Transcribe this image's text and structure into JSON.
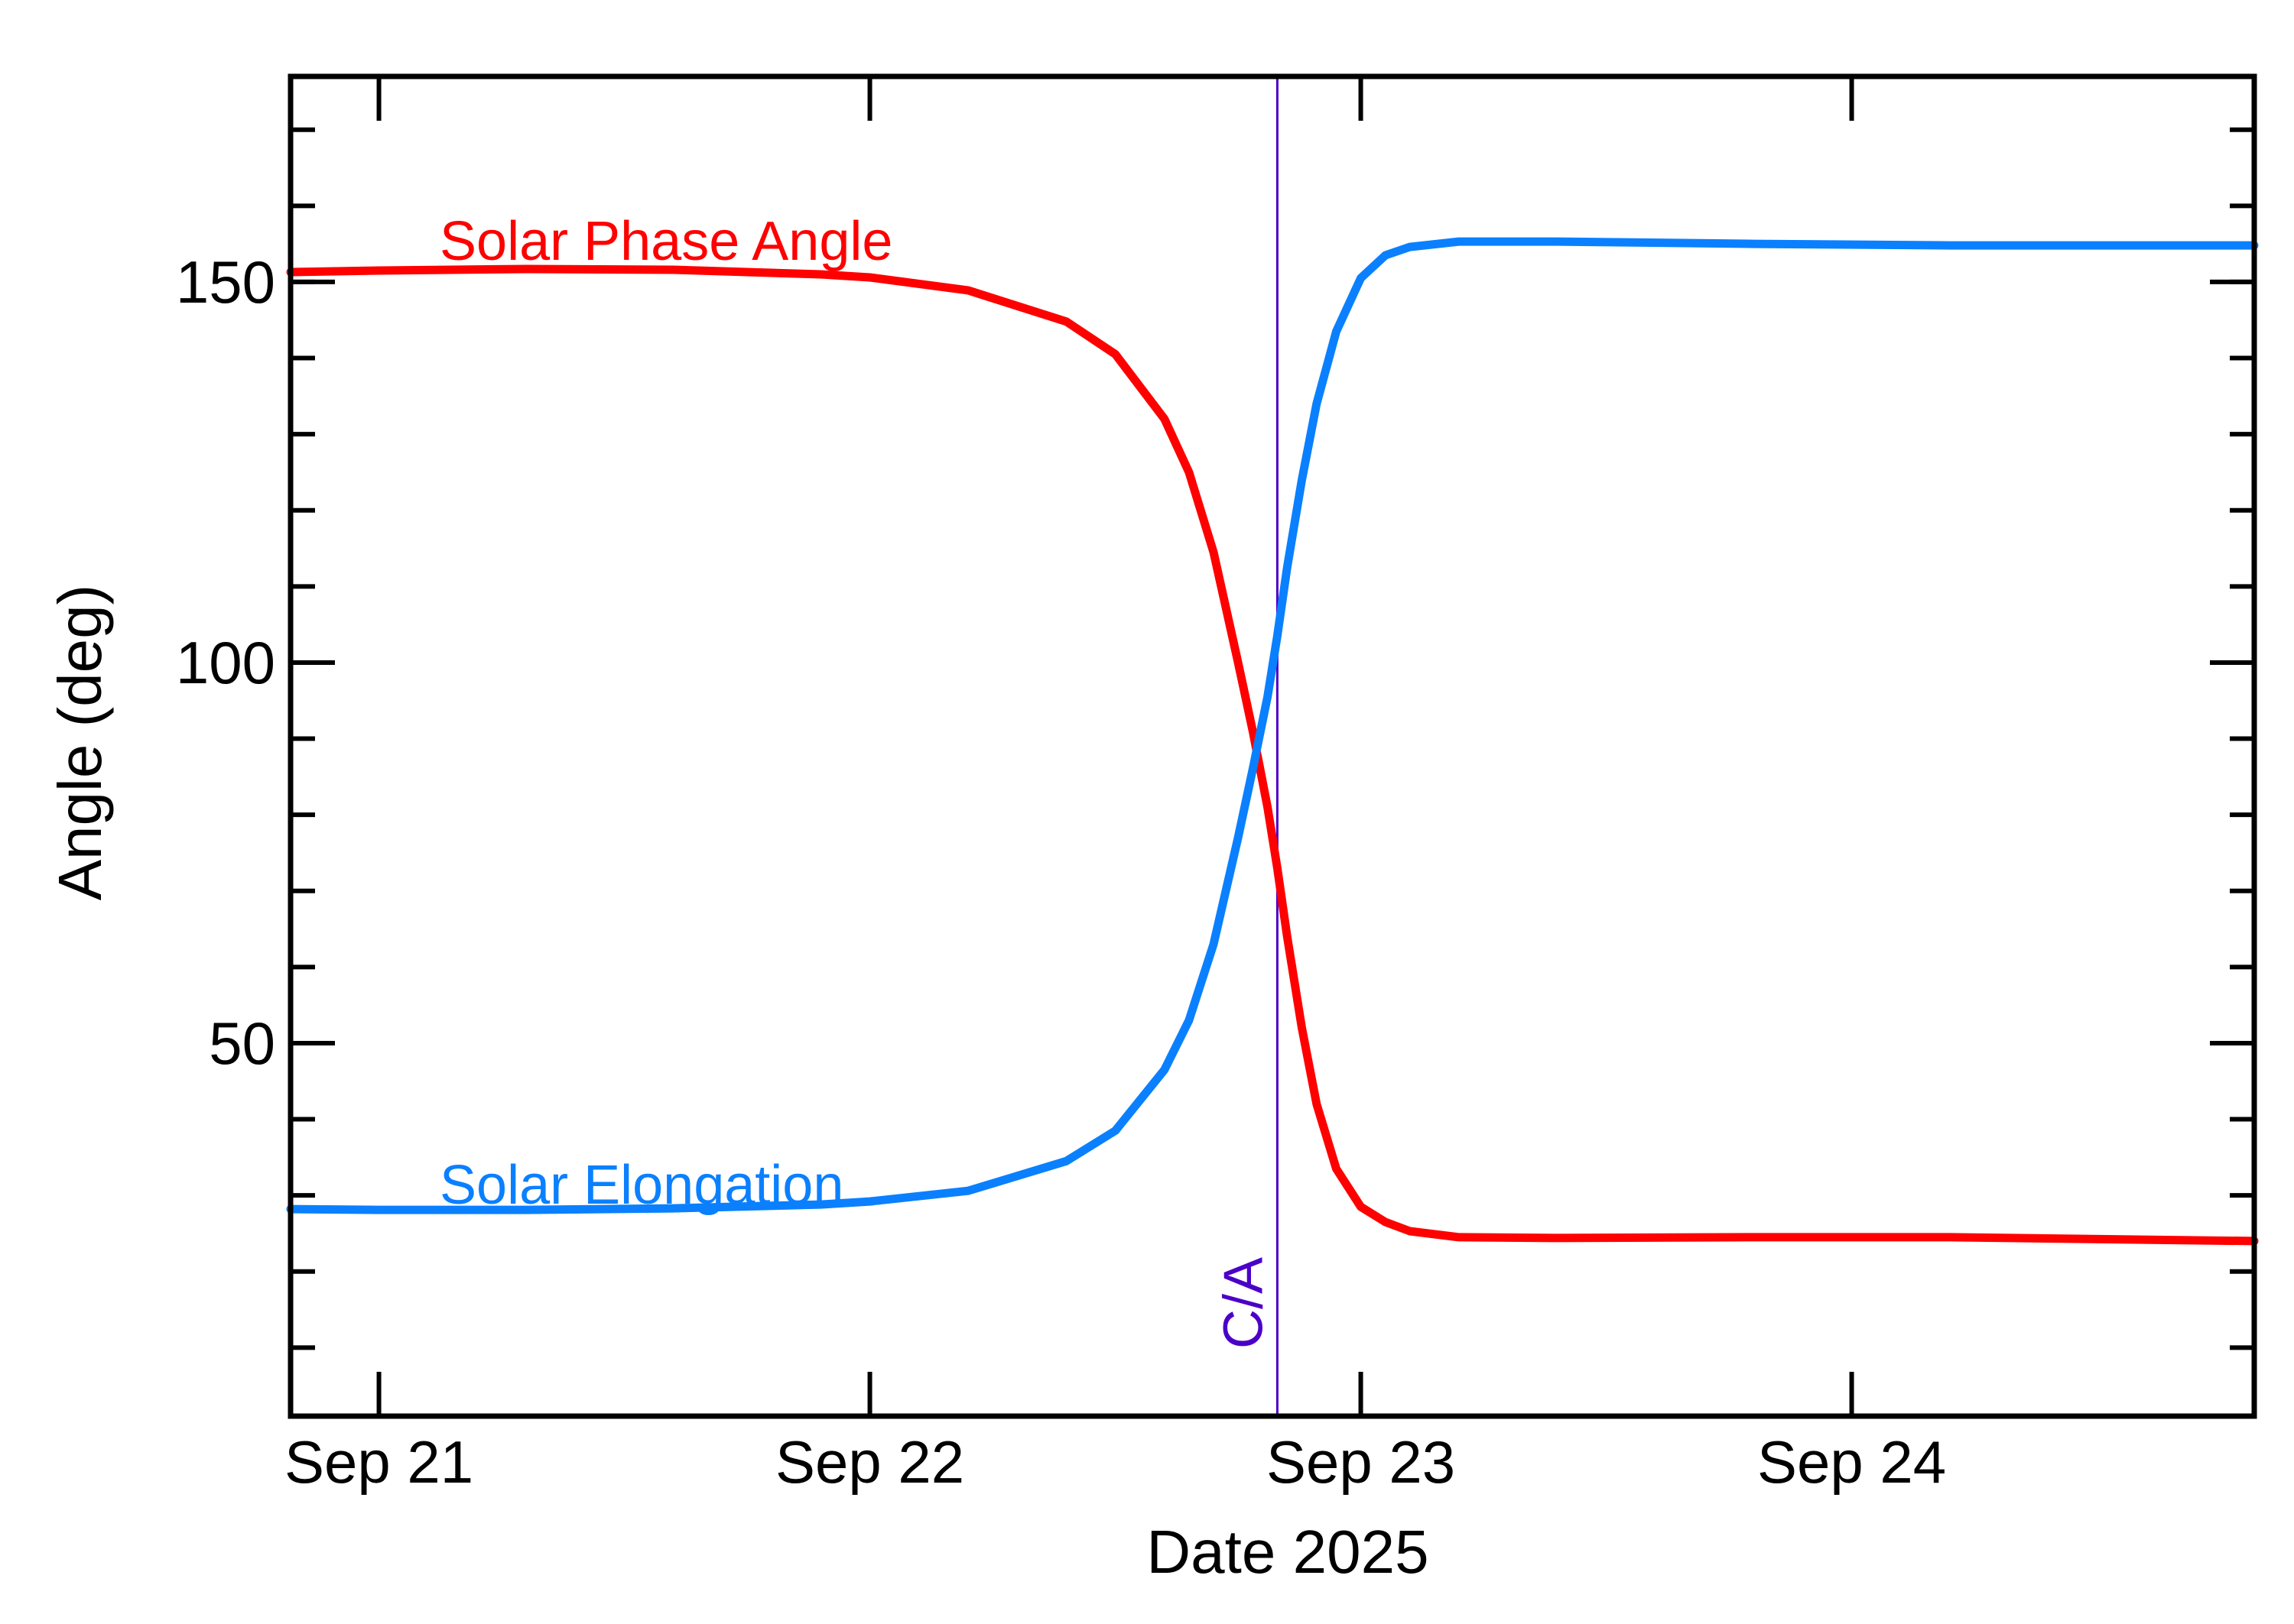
{
  "chart_data": {
    "type": "line",
    "title": "",
    "xlabel": "Date 2025",
    "ylabel": "Angle (deg)",
    "xlim": [
      -0.18,
      3.82
    ],
    "ylim": [
      1,
      177
    ],
    "x_ticks": [
      {
        "value": 0,
        "label": "Sep 21"
      },
      {
        "value": 1,
        "label": "Sep 22"
      },
      {
        "value": 2,
        "label": "Sep 23"
      },
      {
        "value": 3,
        "label": "Sep 24"
      }
    ],
    "y_ticks": [
      {
        "value": 50,
        "label": "50"
      },
      {
        "value": 100,
        "label": "100"
      },
      {
        "value": 150,
        "label": "150"
      }
    ],
    "y_minor_step": 10,
    "grid": false,
    "vertical_marker": {
      "x": 1.83,
      "label": "C/A",
      "color": "#4b00c8"
    },
    "series": [
      {
        "name": "Solar Phase Angle",
        "color": "#ff0000",
        "x": [
          -0.18,
          0.0,
          0.3,
          0.6,
          0.9,
          1.0,
          1.2,
          1.4,
          1.5,
          1.6,
          1.65,
          1.7,
          1.75,
          1.78,
          1.81,
          1.83,
          1.85,
          1.88,
          1.91,
          1.95,
          2.0,
          2.05,
          2.1,
          2.2,
          2.4,
          2.8,
          3.2,
          3.82
        ],
        "values": [
          151.3,
          151.5,
          151.7,
          151.6,
          151.0,
          150.6,
          148.9,
          144.8,
          140.5,
          132.0,
          125.0,
          114.5,
          100.0,
          91.0,
          81.0,
          73.0,
          64.0,
          52.0,
          42.0,
          33.5,
          28.5,
          26.5,
          25.3,
          24.5,
          24.4,
          24.5,
          24.5,
          24.0
        ]
      },
      {
        "name": "Solar Elongation",
        "color": "#0a80ff",
        "x": [
          -0.18,
          0.0,
          0.3,
          0.6,
          0.9,
          1.0,
          1.2,
          1.4,
          1.5,
          1.6,
          1.65,
          1.7,
          1.75,
          1.78,
          1.81,
          1.83,
          1.85,
          1.88,
          1.91,
          1.95,
          2.0,
          2.05,
          2.1,
          2.2,
          2.4,
          2.8,
          3.2,
          3.82
        ],
        "values": [
          28.2,
          28.1,
          28.1,
          28.3,
          28.8,
          29.2,
          30.6,
          34.5,
          38.5,
          46.5,
          53.0,
          63.0,
          77.0,
          86.0,
          95.5,
          103.5,
          112.5,
          124.0,
          134.0,
          143.5,
          150.5,
          153.5,
          154.6,
          155.3,
          155.3,
          155.0,
          154.8,
          154.8
        ]
      }
    ]
  }
}
